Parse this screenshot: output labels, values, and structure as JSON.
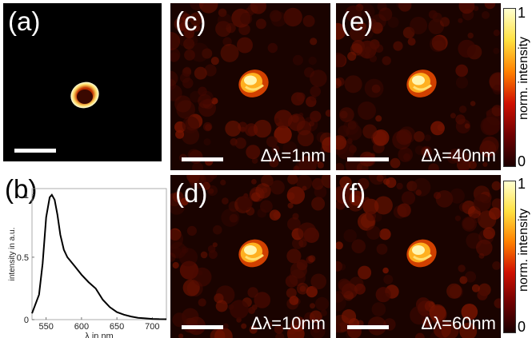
{
  "panels": {
    "a": {
      "label": "(a)"
    },
    "b": {
      "label": "(b)"
    },
    "c": {
      "label": "(c)",
      "delta": "Δλ=1nm"
    },
    "d": {
      "label": "(d)",
      "delta": "Δλ=10nm"
    },
    "e": {
      "label": "(e)",
      "delta": "Δλ=40nm"
    },
    "f": {
      "label": "(f)",
      "delta": "Δλ=60nm"
    }
  },
  "colorbar": {
    "label": "norm. intensity",
    "max_tick": "1",
    "min_tick": "0",
    "colors": [
      "#ffffd0",
      "#ffe040",
      "#ff8000",
      "#d01000",
      "#700000",
      "#1a0000"
    ]
  },
  "chart_data": {
    "type": "line",
    "xlabel": "λ in nm",
    "ylabel": "intensity in a.u.",
    "xlim": [
      530,
      720
    ],
    "ylim": [
      0,
      1.05
    ],
    "xticks": [
      "550",
      "600",
      "650",
      "700"
    ],
    "yticks": [
      "0",
      "0.5",
      "1"
    ],
    "series": [
      {
        "x": [
          530,
          540,
          545,
          550,
          555,
          558,
          562,
          566,
          570,
          575,
          580,
          590,
          600,
          610,
          620,
          630,
          640,
          650,
          660,
          670,
          680,
          690,
          700,
          710,
          720
        ],
        "values": [
          0.05,
          0.2,
          0.45,
          0.82,
          0.98,
          1.0,
          0.96,
          0.84,
          0.68,
          0.56,
          0.5,
          0.43,
          0.36,
          0.3,
          0.25,
          0.16,
          0.1,
          0.06,
          0.04,
          0.025,
          0.015,
          0.01,
          0.006,
          0.004,
          0.003
        ]
      }
    ]
  }
}
